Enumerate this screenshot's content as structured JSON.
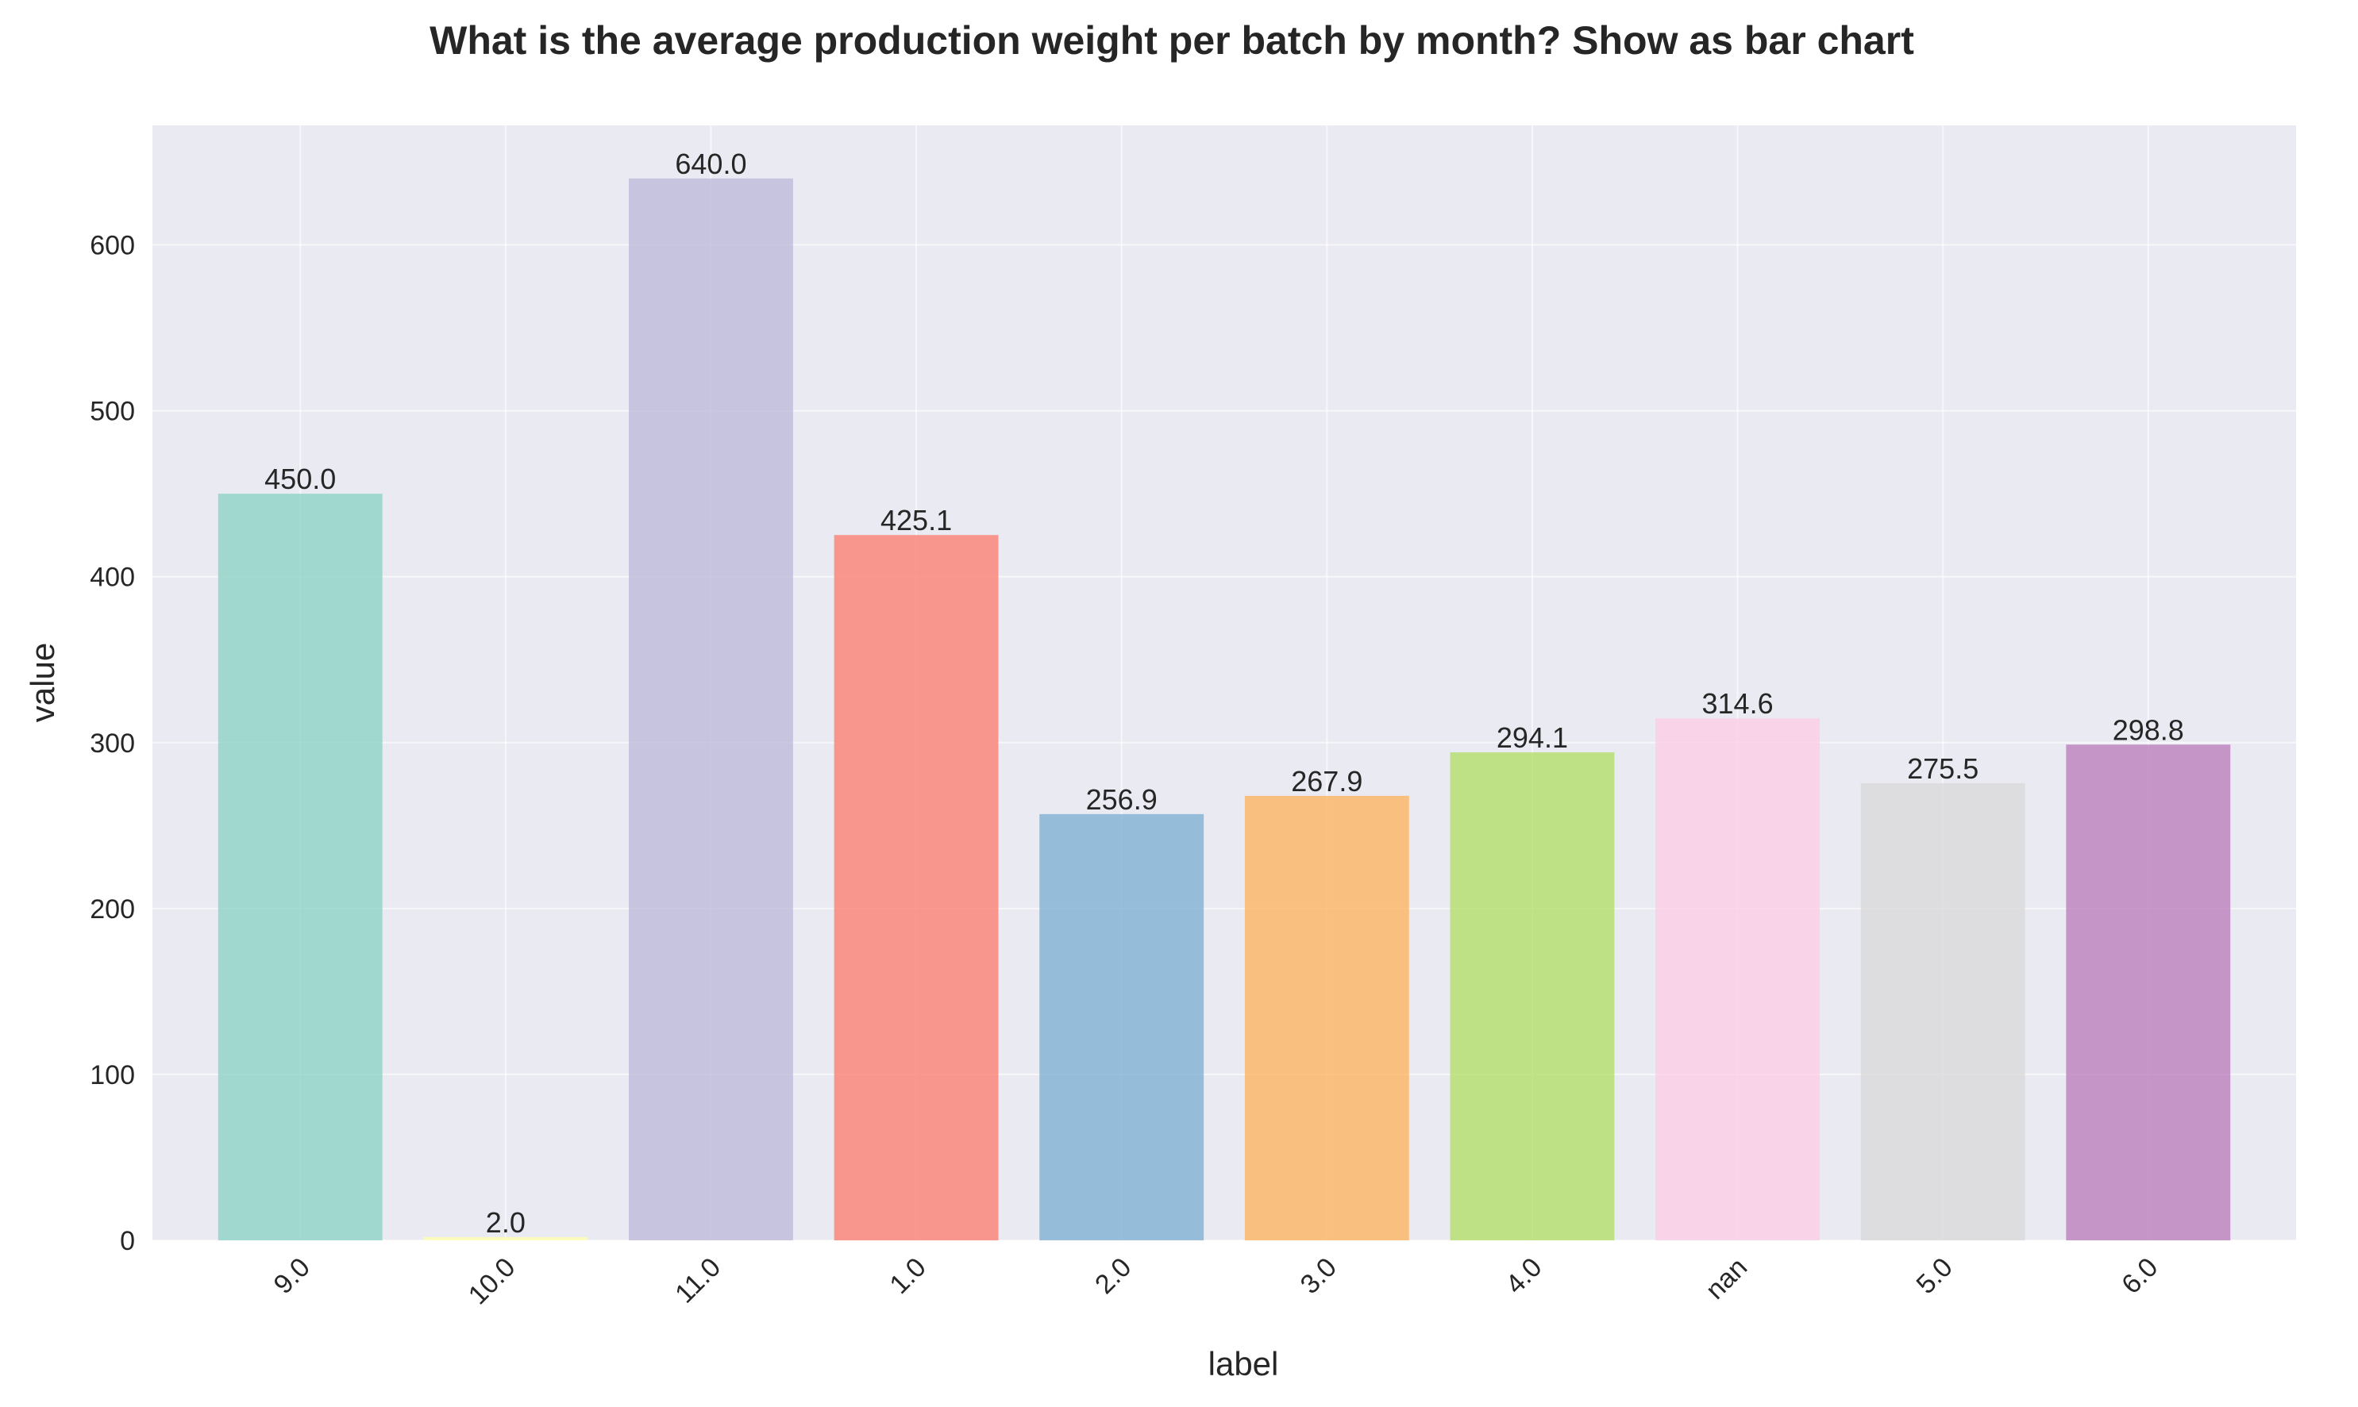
{
  "chart_data": {
    "type": "bar",
    "title": "What is the average production weight per batch by month? Show as bar chart",
    "xlabel": "label",
    "ylabel": "value",
    "categories": [
      "9.0",
      "10.0",
      "11.0",
      "1.0",
      "2.0",
      "3.0",
      "4.0",
      "nan",
      "5.0",
      "6.0"
    ],
    "values": [
      450.0,
      2.0,
      640.0,
      425.1,
      256.9,
      267.9,
      294.1,
      314.6,
      275.5,
      298.8
    ],
    "value_labels": [
      "450.0",
      "2.0",
      "640.0",
      "425.1",
      "256.9",
      "267.9",
      "294.1",
      "314.6",
      "275.5",
      "298.8"
    ],
    "colors": [
      "#8dd3c7",
      "#ffffb3",
      "#bebada",
      "#fb8072",
      "#80b1d3",
      "#fdb462",
      "#b3de69",
      "#fccde5",
      "#d9d9d9",
      "#bc80bd"
    ],
    "yticks": [
      0,
      100,
      200,
      300,
      400,
      500,
      600
    ],
    "ylim": [
      0,
      672
    ],
    "grid": true,
    "plot_background": "#eaeaf2",
    "grid_color": "#ffffff"
  }
}
